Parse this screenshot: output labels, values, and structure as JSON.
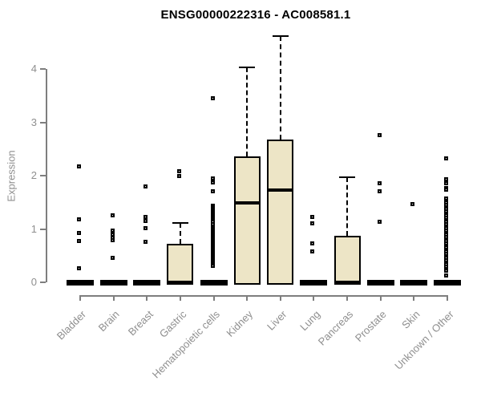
{
  "title": "ENSG00000222316 - AC008581.1",
  "colors": {
    "box_fill": "#ede5c6",
    "box_border": "#000000",
    "axis_line": "#7e7e7e",
    "axis_text": "#8f8f8f",
    "title_text": "#000000"
  },
  "chart_data": {
    "type": "boxplot",
    "title": "ENSG00000222316 - AC008581.1",
    "xlabel": "",
    "ylabel": "Expression",
    "ylim": [
      0,
      4.7
    ],
    "yticks": [
      0,
      1,
      2,
      3,
      4
    ],
    "grid": false,
    "legend": "none",
    "categories": [
      "Bladder",
      "Brain",
      "Breast",
      "Gastric",
      "Hematopoietic cells",
      "Kidney",
      "Liver",
      "Lung",
      "Pancreas",
      "Prostate",
      "Skin",
      "Unknown / Other"
    ],
    "series": [
      {
        "name": "Bladder",
        "q1": 0,
        "median": 0,
        "q3": 0,
        "whisker_low": 0,
        "whisker_high": 0,
        "outliers": [
          2.19,
          1.19,
          0.93,
          0.79,
          0.27
        ]
      },
      {
        "name": "Brain",
        "q1": 0,
        "median": 0,
        "q3": 0,
        "whisker_low": 0,
        "whisker_high": 0,
        "outliers": [
          1.27,
          0.98,
          0.94,
          0.9,
          0.85,
          0.8,
          0.47
        ]
      },
      {
        "name": "Breast",
        "q1": 0,
        "median": 0,
        "q3": 0,
        "whisker_low": 0,
        "whisker_high": 0,
        "outliers": [
          1.81,
          1.24,
          1.16,
          1.02,
          0.77
        ]
      },
      {
        "name": "Gastric",
        "q1": 0,
        "median": 0,
        "q3": 0.73,
        "whisker_low": 0,
        "whisker_high": 1.12,
        "outliers": [
          2.1,
          2.01
        ]
      },
      {
        "name": "Hematopoietic cells",
        "q1": 0,
        "median": 0,
        "q3": 0,
        "whisker_low": 0,
        "whisker_high": 0,
        "outliers": [
          3.47,
          1.96,
          1.88,
          1.71,
          1.44,
          1.41,
          1.38,
          1.35,
          1.32,
          1.29,
          1.26,
          1.23,
          1.2,
          1.17,
          1.14,
          1.1,
          1.06,
          1.03,
          1.0,
          0.97,
          0.94,
          0.91,
          0.88,
          0.85,
          0.82,
          0.79,
          0.76,
          0.73,
          0.7,
          0.67,
          0.64,
          0.61,
          0.58,
          0.55,
          0.52,
          0.49,
          0.46,
          0.43,
          0.4,
          0.37,
          0.34,
          0.31
        ]
      },
      {
        "name": "Kidney",
        "q1": 0,
        "median": 1.49,
        "q3": 2.36,
        "whisker_low": 0,
        "whisker_high": 4.03,
        "outliers": []
      },
      {
        "name": "Liver",
        "q1": 0,
        "median": 1.73,
        "q3": 2.68,
        "whisker_low": 0,
        "whisker_high": 4.63,
        "outliers": []
      },
      {
        "name": "Lung",
        "q1": 0,
        "median": 0,
        "q3": 0,
        "whisker_low": 0,
        "whisker_high": 0,
        "outliers": [
          1.24,
          1.11,
          0.74,
          0.59
        ]
      },
      {
        "name": "Pancreas",
        "q1": 0,
        "median": 0,
        "q3": 0.88,
        "whisker_low": 0,
        "whisker_high": 1.97,
        "outliers": []
      },
      {
        "name": "Prostate",
        "q1": 0,
        "median": 0,
        "q3": 0,
        "whisker_low": 0,
        "whisker_high": 0,
        "outliers": [
          2.77,
          1.87,
          1.72,
          1.14
        ]
      },
      {
        "name": "Skin",
        "q1": 0,
        "median": 0,
        "q3": 0,
        "whisker_low": 0,
        "whisker_high": 0,
        "outliers": [
          1.47
        ]
      },
      {
        "name": "Unknown / Other",
        "q1": 0,
        "median": 0,
        "q3": 0,
        "whisker_low": 0,
        "whisker_high": 0,
        "outliers": [
          2.33,
          1.94,
          1.9,
          1.86,
          1.78,
          1.75,
          1.58,
          1.54,
          1.5,
          1.46,
          1.42,
          1.38,
          1.34,
          1.3,
          1.26,
          1.22,
          1.18,
          1.14,
          1.1,
          1.06,
          1.02,
          0.98,
          0.94,
          0.9,
          0.86,
          0.82,
          0.78,
          0.74,
          0.7,
          0.66,
          0.62,
          0.58,
          0.54,
          0.5,
          0.46,
          0.42,
          0.38,
          0.34,
          0.3,
          0.26,
          0.22,
          0.14
        ]
      }
    ]
  }
}
